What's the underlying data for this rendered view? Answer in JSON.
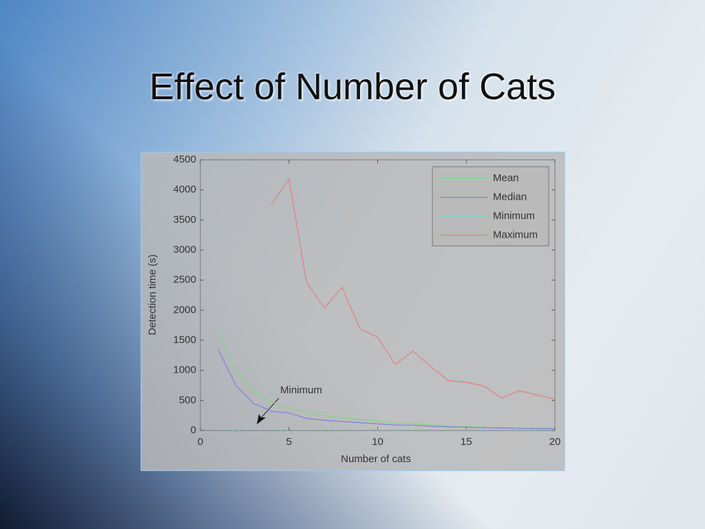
{
  "chart_data": {
    "type": "line",
    "title": "Effect of Number of Cats",
    "x_label": "Number of cats",
    "y_label": "Detection time (s)",
    "annotation": "Minimum",
    "x": [
      1,
      2,
      3,
      4,
      5,
      6,
      7,
      8,
      9,
      10,
      11,
      12,
      13,
      14,
      15,
      16,
      17,
      18,
      19,
      20
    ],
    "series": [
      {
        "name": "Mean",
        "color": "#7fd67f",
        "style": "solid",
        "values": [
          1650,
          1000,
          650,
          480,
          380,
          300,
          250,
          210,
          180,
          160,
          120,
          120,
          90,
          70,
          65,
          55,
          50,
          45,
          40,
          35
        ]
      },
      {
        "name": "Median",
        "color": "#7f7fe0",
        "style": "solid",
        "values": [
          1350,
          750,
          450,
          320,
          290,
          200,
          170,
          150,
          130,
          110,
          90,
          90,
          70,
          60,
          55,
          45,
          40,
          35,
          30,
          30
        ]
      },
      {
        "name": "Minimum",
        "color": "#6fd6d6",
        "style": "dotted",
        "values": [
          10,
          10,
          10,
          10,
          10,
          10,
          10,
          10,
          10,
          10,
          10,
          10,
          10,
          10,
          10,
          10,
          10,
          10,
          10,
          10
        ]
      },
      {
        "name": "Maximum",
        "color": "#e07f7f",
        "style": "solid",
        "values": [
          null,
          null,
          null,
          3760,
          4180,
          2450,
          2040,
          2380,
          1690,
          1550,
          1100,
          1320,
          1060,
          830,
          800,
          740,
          540,
          660,
          590,
          520
        ]
      }
    ],
    "xlim": [
      0,
      20
    ],
    "xticks": [
      0,
      5,
      10,
      15,
      20
    ],
    "ylim": [
      0,
      4500
    ],
    "yticks": [
      0,
      500,
      1000,
      1500,
      2000,
      2500,
      3000,
      3500,
      4000,
      4500
    ],
    "grid": false,
    "legend": "upper right"
  }
}
